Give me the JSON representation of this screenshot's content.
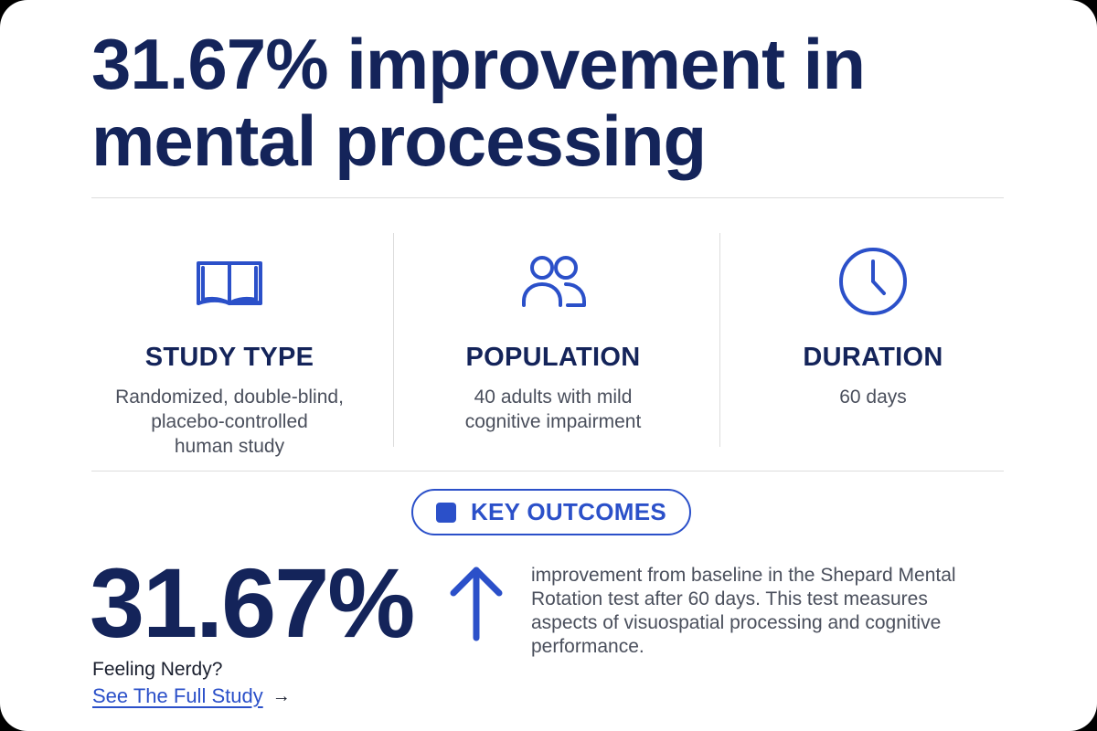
{
  "headline": {
    "line1": "31.67% improvement in",
    "line2": "mental processing"
  },
  "stats": [
    {
      "icon": "open-book-icon",
      "title": "STUDY TYPE",
      "description_lines": [
        "Randomized, double-blind,",
        "placebo-controlled",
        "human study"
      ]
    },
    {
      "icon": "people-icon",
      "title": "POPULATION",
      "description_lines": [
        "40 adults with mild",
        "cognitive impairment"
      ]
    },
    {
      "icon": "clock-icon",
      "title": "DURATION",
      "description_lines": [
        "60 days"
      ]
    }
  ],
  "key_outcomes": {
    "label": "KEY OUTCOMES",
    "value": "31.67%",
    "trend_icon": "arrow-up-icon",
    "description_lines": [
      "improvement from baseline in the Shepard Mental",
      "Rotation test after 60 days. This test measures",
      "aspects of visuospatial processing and cognitive",
      "performance."
    ]
  },
  "footer": {
    "prompt": "Feeling Nerdy?",
    "link_label": "See The Full Study",
    "link_arrow": "→"
  },
  "colors": {
    "navy": "#14245a",
    "accent_blue": "#2b50c9",
    "body_text": "#4a4f5c",
    "divider": "#dcdcdc"
  }
}
